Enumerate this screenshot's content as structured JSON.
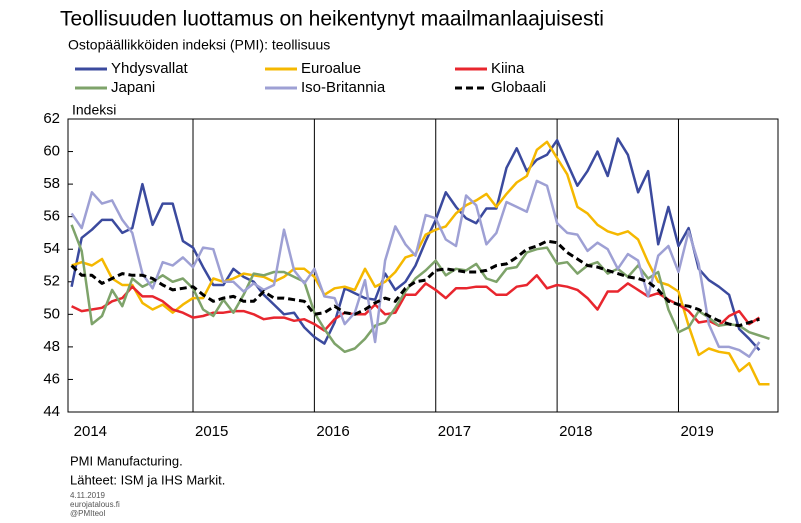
{
  "chart_data": {
    "type": "line",
    "title": "Teollisuuden luottamus on heikentynyt maailmanlaajuisesti",
    "subtitle": "Ostopäällikköiden indeksi (PMI): teollisuus",
    "y_label": "Indeksi",
    "notes": [
      "PMI Manufacturing.",
      "Lähteet: ISM ja IHS Markit."
    ],
    "credits": [
      "4.11.2019",
      "eurojatalous.fi",
      "@PMIteol"
    ],
    "x": [
      2014,
      2014.083,
      2014.167,
      2014.25,
      2014.333,
      2014.417,
      2014.5,
      2014.583,
      2014.667,
      2014.75,
      2014.833,
      2014.917,
      2015,
      2015.083,
      2015.167,
      2015.25,
      2015.333,
      2015.417,
      2015.5,
      2015.583,
      2015.667,
      2015.75,
      2015.833,
      2015.917,
      2016,
      2016.083,
      2016.167,
      2016.25,
      2016.333,
      2016.417,
      2016.5,
      2016.583,
      2016.667,
      2016.75,
      2016.833,
      2016.917,
      2017,
      2017.083,
      2017.167,
      2017.25,
      2017.333,
      2017.417,
      2017.5,
      2017.583,
      2017.667,
      2017.75,
      2017.833,
      2017.917,
      2018,
      2018.083,
      2018.167,
      2018.25,
      2018.333,
      2018.417,
      2018.5,
      2018.583,
      2018.667,
      2018.75,
      2018.833,
      2018.917,
      2019,
      2019.083,
      2019.167,
      2019.25,
      2019.333,
      2019.417,
      2019.5,
      2019.583,
      2019.667,
      2019.75
    ],
    "xlim": [
      2013.97,
      2019.82
    ],
    "xticks": [
      2014,
      2015,
      2016,
      2017,
      2018,
      2019
    ],
    "ylim": [
      44,
      62
    ],
    "yticks": [
      44,
      46,
      48,
      50,
      52,
      54,
      56,
      58,
      60,
      62
    ],
    "series": [
      {
        "name": "Yhdysvallat",
        "color": "#3b4a9e",
        "dashed": false,
        "values": [
          51.7,
          54.7,
          55.2,
          55.8,
          55.8,
          55.0,
          55.3,
          58.0,
          55.5,
          56.8,
          56.8,
          54.5,
          54.1,
          52.9,
          51.8,
          51.8,
          52.8,
          52.3,
          52.0,
          51.2,
          50.6,
          50.0,
          50.1,
          49.2,
          48.6,
          48.2,
          49.5,
          51.6,
          51.3,
          51.0,
          50.9,
          52.5,
          51.5,
          52.0,
          53.0,
          54.5,
          55.8,
          57.5,
          56.6,
          55.9,
          55.6,
          56.5,
          56.5,
          59.0,
          60.2,
          58.8,
          59.5,
          59.8,
          60.7,
          59.3,
          57.9,
          58.8,
          60.0,
          58.5,
          60.8,
          59.8,
          57.5,
          58.8,
          54.3,
          56.6,
          54.2,
          55.3,
          52.8,
          52.1,
          51.7,
          51.2,
          49.1,
          48.5,
          47.8,
          null
        ]
      },
      {
        "name": "Euroalue",
        "color": "#f5b800",
        "dashed": false,
        "values": [
          53.0,
          53.2,
          53.0,
          53.4,
          52.2,
          51.8,
          51.8,
          50.7,
          50.3,
          50.6,
          50.1,
          50.6,
          51.0,
          51.0,
          52.2,
          52.0,
          52.2,
          52.5,
          52.4,
          52.3,
          52.0,
          52.3,
          52.8,
          52.8,
          52.3,
          51.2,
          51.6,
          51.7,
          51.5,
          52.8,
          51.7,
          52.0,
          52.6,
          53.5,
          53.7,
          54.9,
          55.2,
          55.4,
          56.2,
          56.7,
          57.0,
          57.4,
          56.6,
          57.4,
          58.1,
          58.5,
          60.1,
          60.6,
          59.6,
          58.6,
          56.6,
          56.2,
          55.5,
          55.1,
          54.9,
          55.1,
          54.6,
          53.2,
          52.0,
          51.8,
          51.4,
          49.3,
          47.5,
          47.9,
          47.7,
          47.6,
          46.5,
          47.0,
          45.7,
          45.7
        ]
      },
      {
        "name": "Kiina",
        "color": "#e8262e",
        "dashed": false,
        "values": [
          50.5,
          50.2,
          50.3,
          50.4,
          50.8,
          51.0,
          51.7,
          51.1,
          51.1,
          50.8,
          50.3,
          50.1,
          49.8,
          49.9,
          50.1,
          50.1,
          50.2,
          50.2,
          50.0,
          49.7,
          49.8,
          49.8,
          49.6,
          49.7,
          49.4,
          49.0,
          49.7,
          50.1,
          50.0,
          50.0,
          50.6,
          50.0,
          50.1,
          51.2,
          51.2,
          51.9,
          51.5,
          51.0,
          51.6,
          51.6,
          51.7,
          51.7,
          51.2,
          51.2,
          51.7,
          51.8,
          52.4,
          51.6,
          51.8,
          51.7,
          51.5,
          51.0,
          50.3,
          51.4,
          51.4,
          51.9,
          51.5,
          51.1,
          51.3,
          50.9,
          50.6,
          50.2,
          49.5,
          49.6,
          49.3,
          49.9,
          50.2,
          49.4,
          49.8,
          null
        ]
      },
      {
        "name": "Japani",
        "color": "#7ea36a",
        "dashed": false,
        "values": [
          55.5,
          53.9,
          49.4,
          49.9,
          51.5,
          50.5,
          52.2,
          51.7,
          52.0,
          52.4,
          52.0,
          52.2,
          51.6,
          50.3,
          49.9,
          50.9,
          50.1,
          51.2,
          52.5,
          52.4,
          52.6,
          52.6,
          52.3,
          52.0,
          50.1,
          49.1,
          48.2,
          47.7,
          47.9,
          48.5,
          49.3,
          49.5,
          50.4,
          51.4,
          52.2,
          52.7,
          53.3,
          52.4,
          52.8,
          52.7,
          53.1,
          52.2,
          52.0,
          52.8,
          52.9,
          53.8,
          54.0,
          54.1,
          53.1,
          53.2,
          52.5,
          53.0,
          53.2,
          52.5,
          52.8,
          52.3,
          53.0,
          52.2,
          52.6,
          50.3,
          48.9,
          49.2,
          50.2,
          49.8,
          49.3,
          49.4,
          49.3,
          48.9,
          48.7,
          48.5
        ]
      },
      {
        "name": "Iso-Britannia",
        "color": "#9ea0d4",
        "dashed": false,
        "values": [
          56.2,
          55.3,
          57.5,
          56.8,
          57.0,
          55.8,
          55.0,
          52.5,
          51.6,
          53.2,
          53.0,
          53.5,
          52.9,
          54.1,
          54.0,
          52.0,
          52.0,
          51.4,
          51.9,
          51.5,
          51.8,
          55.2,
          52.7,
          51.9,
          52.8,
          51.1,
          51.0,
          49.4,
          50.1,
          52.1,
          48.3,
          53.3,
          55.4,
          54.3,
          53.6,
          56.1,
          55.9,
          54.6,
          54.2,
          57.3,
          56.7,
          54.3,
          55.0,
          56.9,
          56.6,
          56.3,
          58.2,
          57.9,
          55.6,
          55.0,
          54.9,
          53.9,
          54.4,
          54.0,
          52.8,
          53.7,
          53.3,
          51.1,
          53.6,
          54.2,
          52.6,
          55.1,
          53.1,
          49.4,
          48.0,
          48.0,
          47.8,
          47.4,
          48.3,
          null
        ]
      },
      {
        "name": "Globaali",
        "color": "#000000",
        "dashed": true,
        "values": [
          53.0,
          52.4,
          52.4,
          51.9,
          52.2,
          52.5,
          52.4,
          52.4,
          52.2,
          51.8,
          51.5,
          51.6,
          51.7,
          51.2,
          50.8,
          51.0,
          51.1,
          50.8,
          50.8,
          51.4,
          51.0,
          51.0,
          50.9,
          50.8,
          50.0,
          50.1,
          50.5,
          50.1,
          50.0,
          50.3,
          50.7,
          51.0,
          50.8,
          51.6,
          52.0,
          52.1,
          52.7,
          52.8,
          52.7,
          52.6,
          52.6,
          52.7,
          53.0,
          53.1,
          53.5,
          54.0,
          54.2,
          54.5,
          54.4,
          53.8,
          53.4,
          53.0,
          52.9,
          52.7,
          52.5,
          52.3,
          52.2,
          52.0,
          51.5,
          50.8,
          50.6,
          50.5,
          50.3,
          49.9,
          49.6,
          49.4,
          49.3,
          49.5,
          49.7,
          null
        ]
      }
    ]
  }
}
